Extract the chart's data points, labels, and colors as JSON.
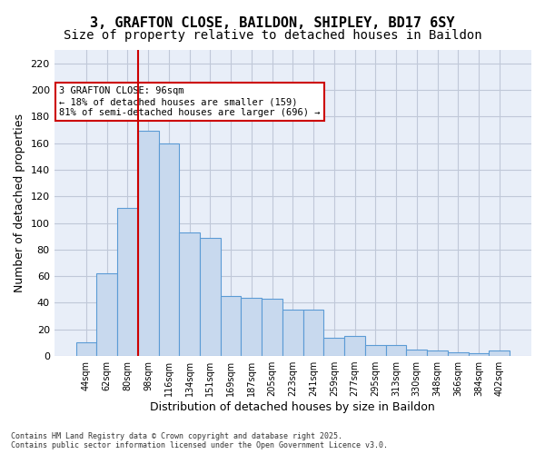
{
  "title1": "3, GRAFTON CLOSE, BAILDON, SHIPLEY, BD17 6SY",
  "title2": "Size of property relative to detached houses in Baildon",
  "xlabel": "Distribution of detached houses by size in Baildon",
  "ylabel": "Number of detached properties",
  "categories": [
    "44sqm",
    "62sqm",
    "80sqm",
    "98sqm",
    "116sqm",
    "134sqm",
    "151sqm",
    "169sqm",
    "187sqm",
    "205sqm",
    "223sqm",
    "241sqm",
    "259sqm",
    "277sqm",
    "295sqm",
    "313sqm",
    "330sqm",
    "348sqm",
    "366sqm",
    "384sqm",
    "402sqm"
  ],
  "values": [
    10,
    62,
    111,
    169,
    160,
    93,
    89,
    45,
    44,
    43,
    35,
    35,
    14,
    15,
    8,
    8,
    5,
    4,
    3,
    2,
    4
  ],
  "bar_color": "#c8d9ee",
  "bar_edge_color": "#5b9bd5",
  "bar_linewidth": 0.8,
  "vline_x": 2.5,
  "vline_color": "#cc0000",
  "vline_linewidth": 1.5,
  "annotation_text": "3 GRAFTON CLOSE: 96sqm\n← 18% of detached houses are smaller (159)\n81% of semi-detached houses are larger (696) →",
  "annotation_box_color": "#cc0000",
  "annotation_fontsize": 7.5,
  "ylim": [
    0,
    230
  ],
  "yticks": [
    0,
    20,
    40,
    60,
    80,
    100,
    120,
    140,
    160,
    180,
    200,
    220
  ],
  "grid_color": "#c0c8d8",
  "background_color": "#e8eef8",
  "footer_text": "Contains HM Land Registry data © Crown copyright and database right 2025.\nContains public sector information licensed under the Open Government Licence v3.0.",
  "title_fontsize": 11,
  "title2_fontsize": 10,
  "xlabel_fontsize": 9,
  "ylabel_fontsize": 9
}
